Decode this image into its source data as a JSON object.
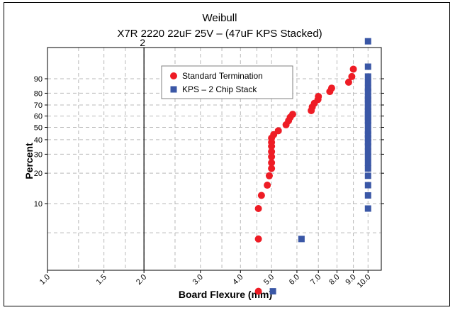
{
  "chart_data": {
    "type": "scatter",
    "title": "Weibull",
    "subtitle": "X7R 2220 22uF 25V – (47uF KPS Stacked)",
    "xlabel": "Board Flexure (mm)",
    "ylabel": "Percent",
    "x_scale": "log",
    "y_scale": "weibull",
    "xlim": [
      1.0,
      11.0
    ],
    "ylim": [
      1.2,
      99.7
    ],
    "x_ticks": [
      {
        "value": 1.0,
        "label": "1.0"
      },
      {
        "value": 1.5,
        "label": "1.5"
      },
      {
        "value": 2.0,
        "label": "2.0"
      },
      {
        "value": 3.0,
        "label": "3.0"
      },
      {
        "value": 4.0,
        "label": "4.0"
      },
      {
        "value": 5.0,
        "label": "5.0"
      },
      {
        "value": 6.0,
        "label": "6.0"
      },
      {
        "value": 7.0,
        "label": "7.0"
      },
      {
        "value": 8.0,
        "label": "8.0"
      },
      {
        "value": 9.0,
        "label": "9.0"
      },
      {
        "value": 10.0,
        "label": "10.0"
      }
    ],
    "y_ticks": [
      {
        "value": 10,
        "label": "10"
      },
      {
        "value": 20,
        "label": "20"
      },
      {
        "value": 30,
        "label": "30"
      },
      {
        "value": 40,
        "label": "40"
      },
      {
        "value": 50,
        "label": "50"
      },
      {
        "value": 60,
        "label": "60"
      },
      {
        "value": 70,
        "label": "70"
      },
      {
        "value": 80,
        "label": "80"
      },
      {
        "value": 90,
        "label": "90"
      }
    ],
    "x_minor_grid": [
      1.25,
      1.75,
      2.5,
      3.5,
      4.5
    ],
    "y_minor_grid": [
      5
    ],
    "reference_line": {
      "x": 2.0,
      "label": "2"
    },
    "grid": true,
    "legend_position": "top-center",
    "series": [
      {
        "name": "Standard Termination",
        "color": "#ee1c25",
        "marker": "circle",
        "points": [
          {
            "x": 4.55,
            "y": 1.2
          },
          {
            "x": 4.55,
            "y": 4.3
          },
          {
            "x": 4.55,
            "y": 8.9
          },
          {
            "x": 4.65,
            "y": 12.1
          },
          {
            "x": 4.85,
            "y": 15.3
          },
          {
            "x": 4.92,
            "y": 18.9
          },
          {
            "x": 5.0,
            "y": 22.2
          },
          {
            "x": 5.0,
            "y": 25.1
          },
          {
            "x": 5.0,
            "y": 28.5
          },
          {
            "x": 5.0,
            "y": 31.6
          },
          {
            "x": 5.0,
            "y": 35.2
          },
          {
            "x": 5.0,
            "y": 38.1
          },
          {
            "x": 5.0,
            "y": 41.2
          },
          {
            "x": 5.08,
            "y": 44.0
          },
          {
            "x": 5.25,
            "y": 47.1
          },
          {
            "x": 5.55,
            "y": 52.2
          },
          {
            "x": 5.65,
            "y": 55.8
          },
          {
            "x": 5.72,
            "y": 58.9
          },
          {
            "x": 5.82,
            "y": 61.6
          },
          {
            "x": 6.65,
            "y": 64.9
          },
          {
            "x": 6.7,
            "y": 68.2
          },
          {
            "x": 6.8,
            "y": 71.5
          },
          {
            "x": 6.98,
            "y": 74.8
          },
          {
            "x": 7.0,
            "y": 77.4
          },
          {
            "x": 7.6,
            "y": 81.3
          },
          {
            "x": 7.7,
            "y": 83.9
          },
          {
            "x": 8.7,
            "y": 87.9
          },
          {
            "x": 8.9,
            "y": 91.2
          },
          {
            "x": 9.0,
            "y": 94.6
          }
        ]
      },
      {
        "name": "KPS – 2 Chip Stack",
        "color": "#3a57a6",
        "marker": "square",
        "points": [
          {
            "x": 5.05,
            "y": 1.2
          },
          {
            "x": 6.2,
            "y": 4.3
          },
          {
            "x": 10.0,
            "y": 8.9
          },
          {
            "x": 10.0,
            "y": 12.1
          },
          {
            "x": 10.0,
            "y": 15.3
          },
          {
            "x": 10.0,
            "y": 18.9
          },
          {
            "x": 10.0,
            "y": 22.2
          },
          {
            "x": 10.0,
            "y": 25.1
          },
          {
            "x": 10.0,
            "y": 28.5
          },
          {
            "x": 10.0,
            "y": 31.6
          },
          {
            "x": 10.0,
            "y": 35.2
          },
          {
            "x": 10.0,
            "y": 38.1
          },
          {
            "x": 10.0,
            "y": 41.2
          },
          {
            "x": 10.0,
            "y": 44.0
          },
          {
            "x": 10.0,
            "y": 47.1
          },
          {
            "x": 10.0,
            "y": 52.2
          },
          {
            "x": 10.0,
            "y": 55.8
          },
          {
            "x": 10.0,
            "y": 58.9
          },
          {
            "x": 10.0,
            "y": 61.6
          },
          {
            "x": 10.0,
            "y": 64.9
          },
          {
            "x": 10.0,
            "y": 68.2
          },
          {
            "x": 10.0,
            "y": 71.5
          },
          {
            "x": 10.0,
            "y": 74.8
          },
          {
            "x": 10.0,
            "y": 77.4
          },
          {
            "x": 10.0,
            "y": 81.3
          },
          {
            "x": 10.0,
            "y": 83.9
          },
          {
            "x": 10.0,
            "y": 87.9
          },
          {
            "x": 10.0,
            "y": 91.2
          },
          {
            "x": 10.0,
            "y": 95.5
          },
          {
            "x": 10.0,
            "y": 99.7
          }
        ]
      }
    ]
  }
}
